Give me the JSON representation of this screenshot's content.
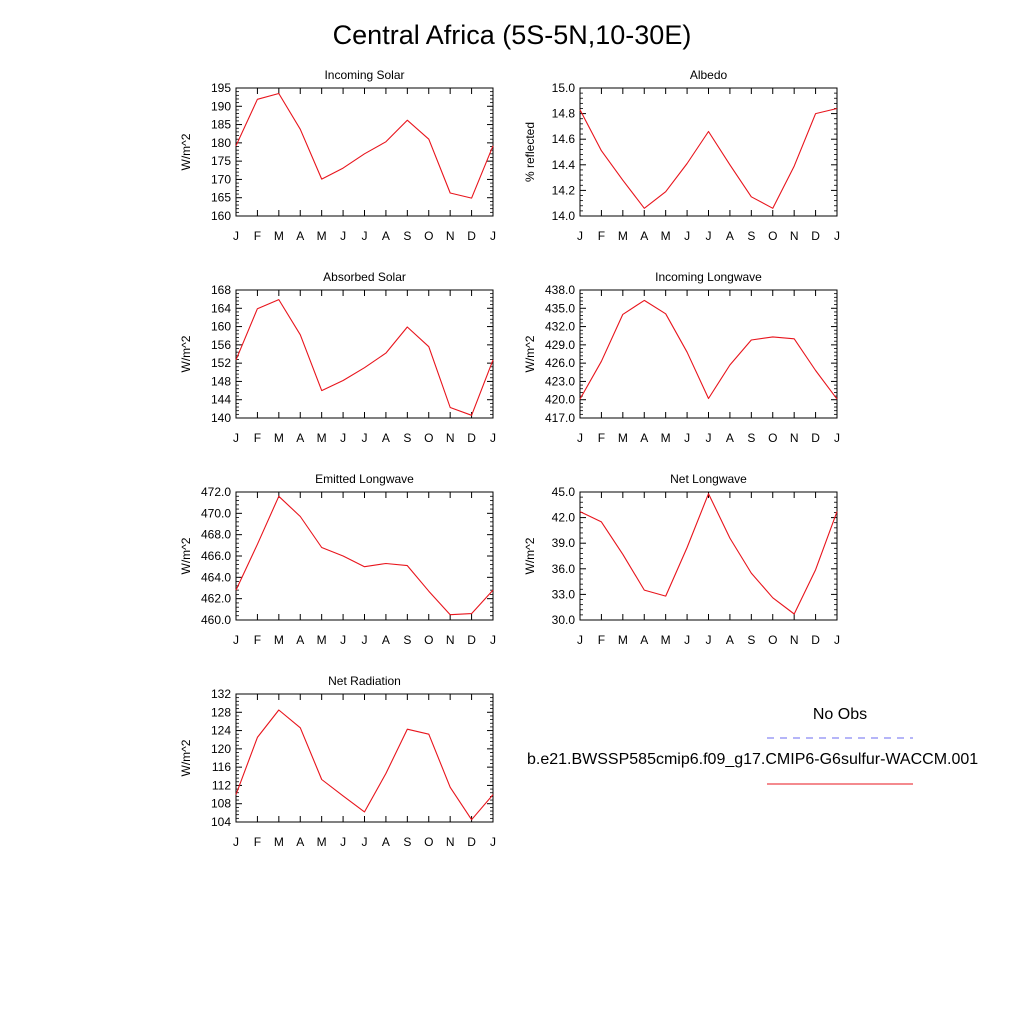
{
  "title": "Central Africa (5S-5N,10-30E)",
  "months": [
    "J",
    "F",
    "M",
    "A",
    "M",
    "J",
    "J",
    "A",
    "S",
    "O",
    "N",
    "D",
    "J"
  ],
  "colors": {
    "model": "#e8141c",
    "obs": "#6b6bf2"
  },
  "legend": {
    "obs_label": "No Obs",
    "model_label": "b.e21.BWSSP585cmip6.f09_g17.CMIP6-G6sulfur-WACCM.001"
  },
  "chart_data": [
    {
      "type": "line",
      "title": "Incoming Solar",
      "ylabel": "W/m^2",
      "ylim": [
        160,
        195
      ],
      "yticks": [
        160,
        165,
        170,
        175,
        180,
        185,
        190,
        195
      ],
      "yticklabels": [
        "160",
        "165",
        "170",
        "175",
        "180",
        "185",
        "190",
        "195"
      ],
      "series": [
        {
          "values": [
            179.2,
            191.9,
            193.5,
            183.7,
            170.1,
            173.1,
            177.0,
            180.3,
            186.2,
            181.0,
            166.3,
            164.9,
            179.2
          ]
        }
      ]
    },
    {
      "type": "line",
      "title": "Albedo",
      "ylabel": "% reflected",
      "ylim": [
        14.0,
        15.0
      ],
      "yticks": [
        14.0,
        14.2,
        14.4,
        14.6,
        14.8,
        15.0
      ],
      "yticklabels": [
        "14.0",
        "14.2",
        "14.4",
        "14.6",
        "14.8",
        "15.0"
      ],
      "series": [
        {
          "values": [
            14.83,
            14.51,
            14.28,
            14.06,
            14.19,
            14.41,
            14.66,
            14.4,
            14.15,
            14.06,
            14.39,
            14.8,
            14.84
          ]
        }
      ]
    },
    {
      "type": "line",
      "title": "Absorbed Solar",
      "ylabel": "W/m^2",
      "ylim": [
        140,
        168
      ],
      "yticks": [
        140,
        144,
        148,
        152,
        156,
        160,
        164,
        168
      ],
      "yticklabels": [
        "140",
        "144",
        "148",
        "152",
        "156",
        "160",
        "164",
        "168"
      ],
      "series": [
        {
          "values": [
            152.7,
            163.9,
            165.9,
            158.2,
            146.0,
            148.2,
            151.0,
            154.2,
            159.9,
            155.6,
            142.3,
            140.6,
            152.7
          ]
        }
      ]
    },
    {
      "type": "line",
      "title": "Incoming Longwave",
      "ylabel": "W/m^2",
      "ylim": [
        417.0,
        438.0
      ],
      "yticks": [
        417,
        420,
        423,
        426,
        429,
        432,
        435,
        438
      ],
      "yticklabels": [
        "417.0",
        "420.0",
        "423.0",
        "426.0",
        "429.0",
        "432.0",
        "435.0",
        "438.0"
      ],
      "series": [
        {
          "values": [
            420.1,
            426.3,
            434.0,
            436.3,
            434.1,
            427.8,
            420.2,
            425.7,
            429.8,
            430.3,
            430.0,
            424.8,
            420.1
          ]
        }
      ]
    },
    {
      "type": "line",
      "title": "Emitted Longwave",
      "ylabel": "W/m^2",
      "ylim": [
        460.0,
        472.0
      ],
      "yticks": [
        460,
        462,
        464,
        466,
        468,
        470,
        472
      ],
      "yticklabels": [
        "460.0",
        "462.0",
        "464.0",
        "466.0",
        "468.0",
        "470.0",
        "472.0"
      ],
      "series": [
        {
          "values": [
            462.8,
            467.1,
            471.6,
            469.7,
            466.8,
            466.0,
            465.0,
            465.3,
            465.1,
            462.7,
            460.5,
            460.6,
            462.8
          ]
        }
      ]
    },
    {
      "type": "line",
      "title": "Net Longwave",
      "ylabel": "W/m^2",
      "ylim": [
        30.0,
        45.0
      ],
      "yticks": [
        30,
        33,
        36,
        39,
        42,
        45
      ],
      "yticklabels": [
        "30.0",
        "33.0",
        "36.0",
        "39.0",
        "42.0",
        "45.0"
      ],
      "series": [
        {
          "values": [
            42.7,
            41.5,
            37.7,
            33.5,
            32.8,
            38.5,
            44.8,
            39.6,
            35.5,
            32.6,
            30.7,
            35.9,
            42.7
          ]
        }
      ]
    },
    {
      "type": "line",
      "title": "Net Radiation",
      "ylabel": "W/m^2",
      "ylim": [
        104,
        132
      ],
      "yticks": [
        104,
        108,
        112,
        116,
        120,
        124,
        128,
        132
      ],
      "yticklabels": [
        "104",
        "108",
        "112",
        "116",
        "120",
        "124",
        "128",
        "132"
      ],
      "series": [
        {
          "values": [
            110.0,
            122.5,
            128.5,
            124.6,
            113.3,
            109.7,
            106.2,
            114.6,
            124.3,
            123.2,
            111.6,
            104.5,
            110.0
          ]
        }
      ]
    }
  ]
}
